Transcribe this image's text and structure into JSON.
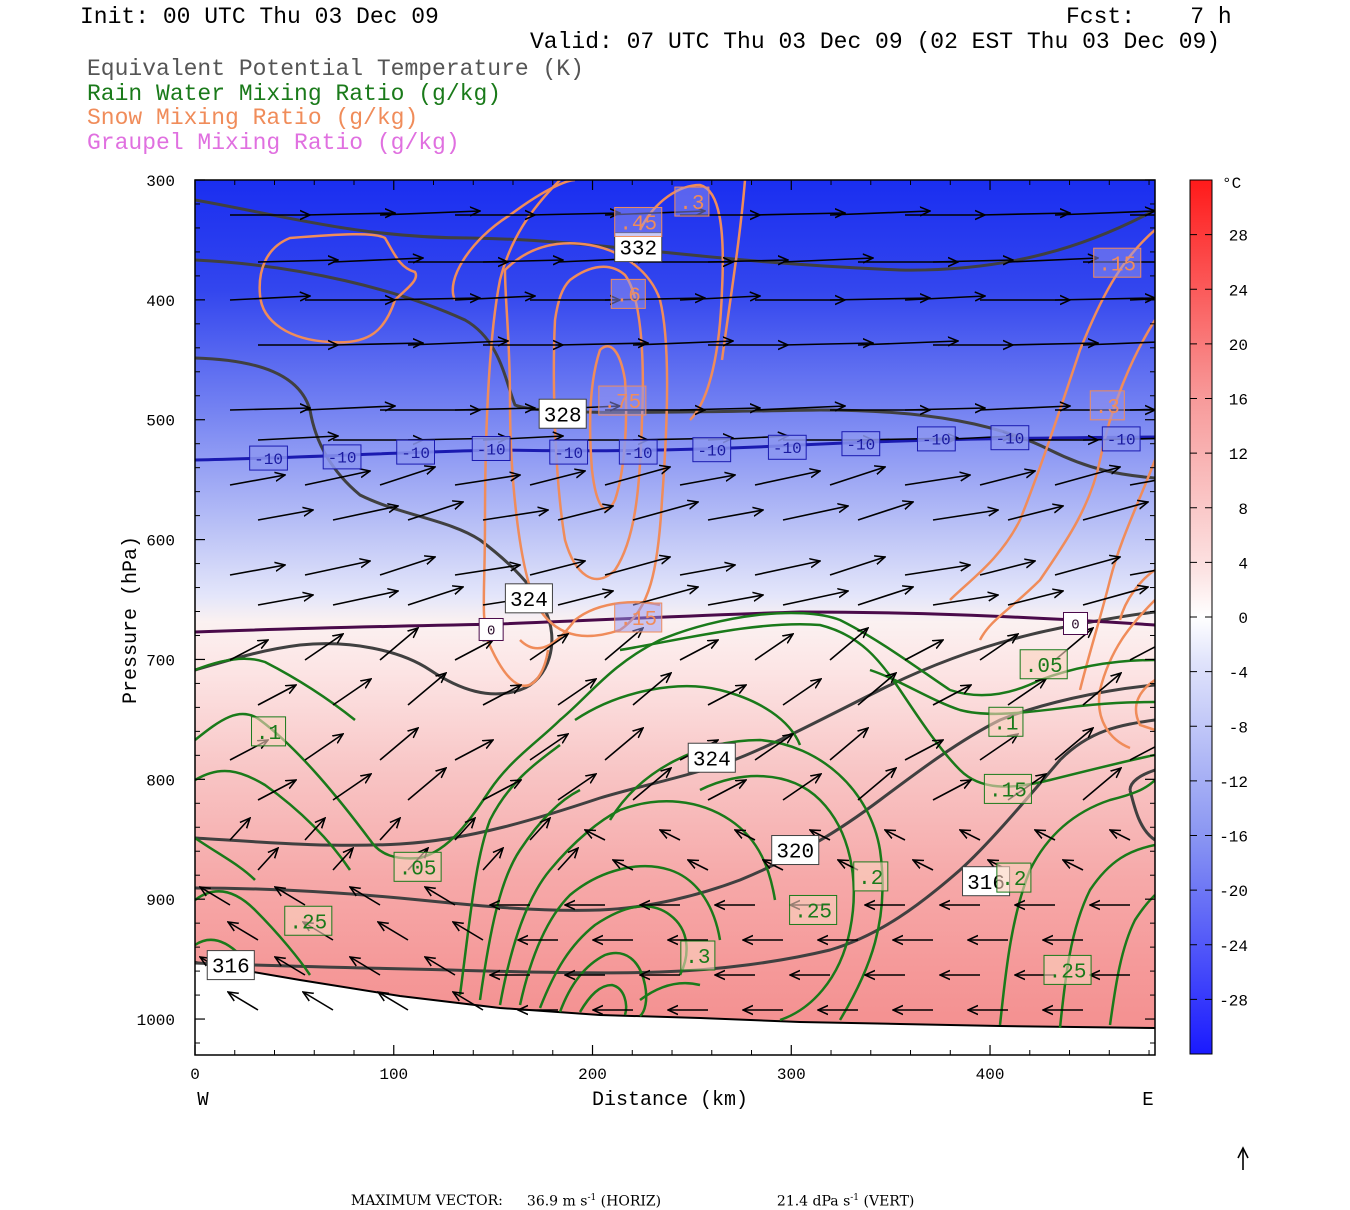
{
  "header": {
    "init": "Init: 00 UTC Thu 03 Dec 09",
    "fcst": "Fcst:    7 h",
    "valid": "Valid: 07 UTC Thu 03 Dec 09 (02 EST Thu 03 Dec 09)"
  },
  "legend": [
    {
      "text": "Equivalent Potential Temperature (K)",
      "color": "#555555"
    },
    {
      "text": "Rain Water Mixing Ratio (g/kg)",
      "color": "#1a7a1a"
    },
    {
      "text": "Snow Mixing Ratio (g/kg)",
      "color": "#f08c5a"
    },
    {
      "text": "Graupel Mixing Ratio (g/kg)",
      "color": "#e070e0"
    }
  ],
  "footer": {
    "max_vector_label": "MAXIMUM VECTOR:",
    "horiz_value": "36.9 m s",
    "horiz_exp": "-1",
    "horiz_tag": " (HORIZ)",
    "vert_value": "21.4 dPa s",
    "vert_exp": "-1",
    "vert_tag": " (VERT)"
  },
  "chart_data": {
    "type": "cross-section",
    "xlabel": "Distance (km)",
    "ylabel": "Pressure (hPa)",
    "xlim": [
      0,
      483
    ],
    "ylim": [
      1030,
      300
    ],
    "x_ticks": [
      0,
      100,
      200,
      300,
      400
    ],
    "y_ticks": [
      300,
      400,
      500,
      600,
      700,
      800,
      900,
      1000
    ],
    "x_end_labels": {
      "left": "W",
      "right": "E"
    },
    "colorbar": {
      "unit": "°C",
      "range": [
        -32,
        32
      ],
      "ticks": [
        28,
        24,
        20,
        16,
        12,
        8,
        4,
        0,
        -4,
        -8,
        -12,
        -16,
        -20,
        -24,
        -28
      ]
    },
    "temperature_contour_labels": [
      {
        "label": "-10",
        "x": 37,
        "p": 532
      },
      {
        "label": "-10",
        "x": 74,
        "p": 531
      },
      {
        "label": "-10",
        "x": 111,
        "p": 527
      },
      {
        "label": "-10",
        "x": 149,
        "p": 524
      },
      {
        "label": "-10",
        "x": 188,
        "p": 527
      },
      {
        "label": "-10",
        "x": 223,
        "p": 527
      },
      {
        "label": "-10",
        "x": 260,
        "p": 525
      },
      {
        "label": "-10",
        "x": 298,
        "p": 523
      },
      {
        "label": "-10",
        "x": 335,
        "p": 520
      },
      {
        "label": "-10",
        "x": 373,
        "p": 516
      },
      {
        "label": "-10",
        "x": 410,
        "p": 515
      },
      {
        "label": "-10",
        "x": 466,
        "p": 516
      },
      {
        "label": "0",
        "x": 149,
        "p": 675
      },
      {
        "label": "0",
        "x": 443,
        "p": 670
      }
    ],
    "theta_e_labels": [
      {
        "label": "332",
        "x": 223,
        "p": 356
      },
      {
        "label": "328",
        "x": 185,
        "p": 495
      },
      {
        "label": "324",
        "x": 168,
        "p": 649
      },
      {
        "label": "324",
        "x": 260,
        "p": 782
      },
      {
        "label": "320",
        "x": 302,
        "p": 859
      },
      {
        "label": "316",
        "x": 398,
        "p": 885
      },
      {
        "label": "316",
        "x": 18,
        "p": 955
      }
    ],
    "rain_labels": [
      {
        "label": ".1",
        "x": 37,
        "p": 760
      },
      {
        "label": ".05",
        "x": 112,
        "p": 873
      },
      {
        "label": ".25",
        "x": 57,
        "p": 918
      },
      {
        "label": ".3",
        "x": 253,
        "p": 947
      },
      {
        "label": ".25",
        "x": 311,
        "p": 909
      },
      {
        "label": ".2",
        "x": 340,
        "p": 881
      },
      {
        "label": ".2",
        "x": 412,
        "p": 882
      },
      {
        "label": ".05",
        "x": 427,
        "p": 704
      },
      {
        "label": ".1",
        "x": 408,
        "p": 752
      },
      {
        "label": ".15",
        "x": 409,
        "p": 808
      },
      {
        "label": ".25",
        "x": 439,
        "p": 959
      }
    ],
    "snow_labels": [
      {
        "label": ".45",
        "x": 223,
        "p": 335
      },
      {
        "label": ".3",
        "x": 250,
        "p": 318
      },
      {
        "label": ".6",
        "x": 218,
        "p": 395
      },
      {
        "label": ".75",
        "x": 215,
        "p": 484
      },
      {
        "label": ".15",
        "x": 223,
        "p": 665
      },
      {
        "label": ".15",
        "x": 464,
        "p": 369
      },
      {
        "label": ".3",
        "x": 459,
        "p": 488
      }
    ],
    "max_vector": {
      "horiz": 36.9,
      "horiz_unit": "m s-1",
      "vert": 21.4,
      "vert_unit": "dPa s-1"
    }
  }
}
